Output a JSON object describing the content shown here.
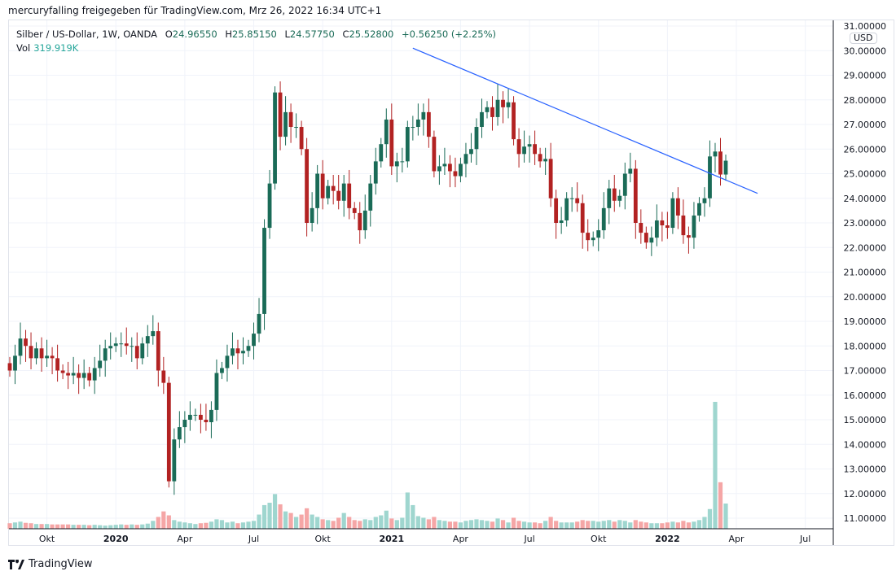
{
  "caption": "mercuryfalling freigegeben für TradingView.com, Mrz 26, 2022 16:34 UTC+1",
  "legend": {
    "symbol": "Silber / US-Dollar, 1W, OANDA",
    "o_label": "O",
    "o": "24.96550",
    "h_label": "H",
    "h": "25.85150",
    "l_label": "L",
    "l": "24.57750",
    "c_label": "C",
    "c": "25.52800",
    "change": "+0.56250 (+2.25%)",
    "vol_label": "Vol",
    "vol": "319.919K"
  },
  "currency": "USD",
  "footer": {
    "brand": "TradingView"
  },
  "colors": {
    "up": "#1a6b57",
    "down": "#b22222",
    "vol_up": "#9fd6cf",
    "vol_down": "#f5a6a6",
    "trendline": "#2962ff"
  },
  "chart_data": {
    "type": "candlestick",
    "title": "Silber / US-Dollar, 1W, OANDA",
    "interval": "1W",
    "ylim": [
      10.5,
      31.3
    ],
    "y_ticks": [
      "31.00000",
      "30.00000",
      "29.00000",
      "28.00000",
      "27.00000",
      "26.00000",
      "25.00000",
      "24.00000",
      "23.00000",
      "22.00000",
      "21.00000",
      "20.00000",
      "19.00000",
      "18.00000",
      "17.00000",
      "16.00000",
      "15.00000",
      "14.00000",
      "13.00000",
      "12.00000",
      "11.00000"
    ],
    "x_ticks": [
      {
        "label": "Okt",
        "index": 7,
        "bold": false
      },
      {
        "label": "2020",
        "index": 20,
        "bold": true
      },
      {
        "label": "Apr",
        "index": 33,
        "bold": false
      },
      {
        "label": "Jul",
        "index": 46,
        "bold": false
      },
      {
        "label": "Okt",
        "index": 59,
        "bold": false
      },
      {
        "label": "2021",
        "index": 72,
        "bold": true
      },
      {
        "label": "Apr",
        "index": 85,
        "bold": false
      },
      {
        "label": "Jul",
        "index": 98,
        "bold": false
      },
      {
        "label": "Okt",
        "index": 111,
        "bold": false
      },
      {
        "label": "2022",
        "index": 124,
        "bold": true
      },
      {
        "label": "Apr",
        "index": 137,
        "bold": false
      },
      {
        "label": "Jul",
        "index": 150,
        "bold": false
      }
    ],
    "first_open": 17.3,
    "close": [
      17.0,
      17.6,
      18.3,
      18.0,
      17.5,
      17.9,
      17.5,
      17.6,
      17.5,
      17.0,
      16.9,
      16.8,
      16.9,
      16.7,
      16.9,
      16.6,
      17.1,
      17.4,
      17.9,
      18.0,
      18.1,
      18.1,
      18.0,
      18.0,
      17.5,
      18.1,
      18.4,
      18.6,
      17.0,
      16.5,
      12.5,
      14.2,
      14.7,
      15.0,
      15.2,
      15.2,
      15.0,
      14.9,
      15.4,
      16.9,
      17.1,
      17.6,
      17.9,
      17.7,
      17.8,
      18.0,
      18.5,
      19.3,
      22.8,
      24.6,
      28.3,
      26.5,
      27.5,
      26.9,
      26.9,
      26.0,
      23.0,
      23.6,
      25.0,
      24.0,
      24.5,
      24.3,
      23.9,
      24.6,
      23.6,
      23.4,
      22.7,
      23.5,
      24.6,
      25.5,
      26.2,
      27.2,
      25.3,
      25.5,
      25.5,
      26.9,
      26.9,
      27.2,
      27.5,
      26.5,
      25.1,
      25.3,
      25.4,
      25.1,
      24.9,
      25.4,
      25.8,
      26.0,
      26.9,
      27.5,
      27.7,
      27.3,
      28.0,
      27.7,
      27.9,
      26.4,
      25.8,
      26.1,
      26.2,
      25.8,
      25.5,
      25.6,
      24.0,
      23.0,
      23.1,
      24.0,
      24.0,
      23.8,
      22.6,
      22.3,
      22.4,
      22.7,
      23.6,
      24.4,
      23.9,
      24.1,
      25.0,
      25.2,
      23.0,
      22.6,
      22.2,
      22.4,
      23.1,
      22.9,
      22.8,
      24.0,
      23.3,
      22.5,
      22.4,
      23.3,
      23.8,
      24.0,
      25.7,
      25.9,
      24.9655,
      25.528
    ],
    "volume_k": [
      70,
      80,
      90,
      75,
      70,
      60,
      60,
      60,
      55,
      55,
      55,
      55,
      50,
      50,
      50,
      45,
      50,
      45,
      40,
      45,
      50,
      55,
      50,
      55,
      50,
      55,
      65,
      100,
      150,
      220,
      170,
      110,
      90,
      80,
      70,
      60,
      70,
      75,
      90,
      120,
      110,
      80,
      90,
      70,
      80,
      90,
      100,
      180,
      300,
      330,
      440,
      310,
      220,
      200,
      150,
      180,
      260,
      180,
      150,
      120,
      110,
      100,
      140,
      200,
      150,
      110,
      100,
      120,
      110,
      150,
      170,
      230,
      130,
      110,
      140,
      460,
      300,
      160,
      140,
      120,
      150,
      110,
      100,
      90,
      90,
      80,
      100,
      110,
      120,
      110,
      100,
      90,
      130,
      110,
      80,
      140,
      100,
      90,
      80,
      80,
      70,
      100,
      150,
      100,
      80,
      80,
      80,
      90,
      110,
      100,
      100,
      90,
      100,
      110,
      90,
      110,
      100,
      80,
      110,
      90,
      80,
      70,
      70,
      70,
      80,
      90,
      80,
      100,
      80,
      90,
      110,
      150,
      250,
      1610,
      590,
      319.919
    ],
    "trendline": {
      "from": {
        "index": 76,
        "price": 30.1
      },
      "to": {
        "index": 141,
        "price": 24.2
      }
    }
  }
}
